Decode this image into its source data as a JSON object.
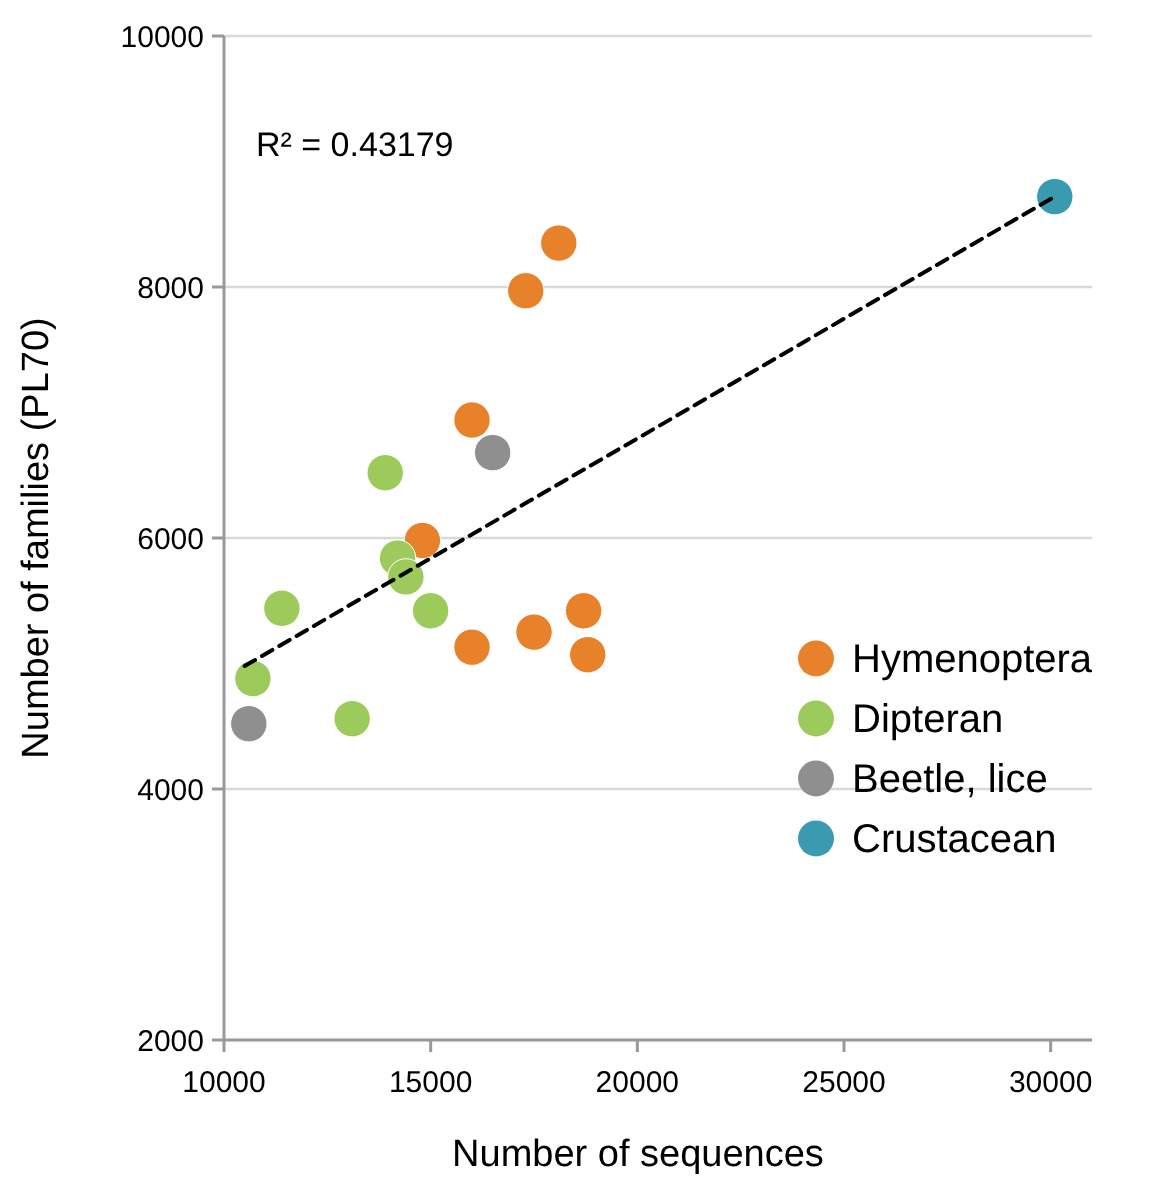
{
  "chart_data": {
    "type": "scatter",
    "xlabel": "Number of sequences",
    "ylabel": "Number of families (PL70)",
    "annotations": [
      "R² = 0.43179"
    ],
    "xlim": [
      10000,
      31000
    ],
    "xticks": [
      10000,
      15000,
      20000,
      25000,
      30000
    ],
    "ylim": [
      2000,
      10000
    ],
    "yticks": [
      2000,
      4000,
      6000,
      8000,
      10000
    ],
    "grid": "y",
    "legend": "bottom right",
    "marker": "circle",
    "series": [
      {
        "name": "Hymenoptera",
        "color": "#e8822a",
        "x": [
          18100,
          17300,
          16000,
          14800,
          16000,
          17500,
          18700,
          18800
        ],
        "values": [
          8350,
          7970,
          6940,
          5980,
          5130,
          5250,
          5420,
          5070
        ]
      },
      {
        "name": "Dipteran",
        "color": "#9ccb5c",
        "x": [
          13900,
          14200,
          14400,
          11400,
          15000,
          10700,
          13100
        ],
        "values": [
          6520,
          5840,
          5690,
          5440,
          5420,
          4880,
          4560
        ]
      },
      {
        "name": "Beetle, lice",
        "color": "#8f8f8f",
        "x": [
          16500,
          10600
        ],
        "values": [
          6680,
          4520
        ]
      },
      {
        "name": "Crustacean",
        "color": "#3a9ab0",
        "x": [
          30100
        ],
        "values": [
          8720
        ]
      },
      {
        "type": "line",
        "color": "#000000",
        "line_style": "dashed",
        "marker": "none",
        "x": [
          10500,
          30100
        ],
        "values": [
          4980,
          8720
        ]
      }
    ]
  }
}
